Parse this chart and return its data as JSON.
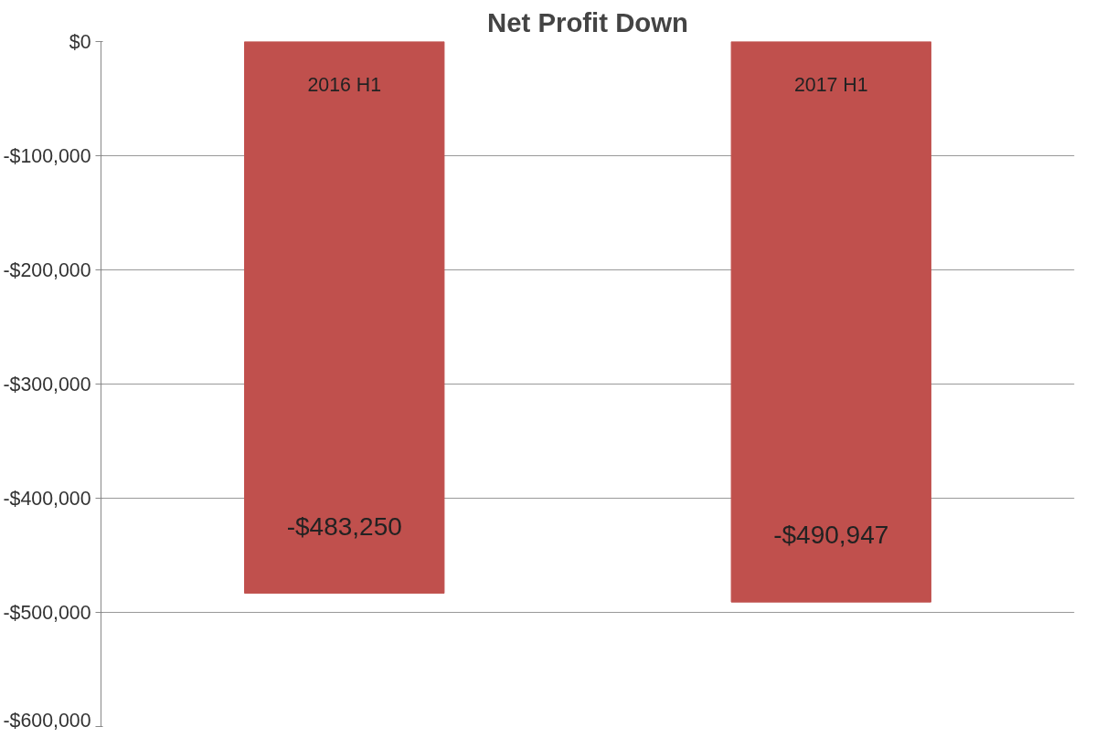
{
  "chart_data": {
    "type": "bar",
    "title": "Net Profit Down",
    "categories": [
      "2016 H1",
      "2017 H1"
    ],
    "series": [
      {
        "color": "#c0504d",
        "values": [
          -483250,
          -490947
        ]
      }
    ],
    "value_labels": [
      "-$483,250",
      "-$490,947"
    ],
    "ylim": [
      -600000,
      0
    ],
    "yticks": [
      {
        "value": 0,
        "label": "$0"
      },
      {
        "value": -100000,
        "label": "-$100,000"
      },
      {
        "value": -200000,
        "label": "-$200,000"
      },
      {
        "value": -300000,
        "label": "-$300,000"
      },
      {
        "value": -400000,
        "label": "-$400,000"
      },
      {
        "value": -500000,
        "label": "-$500,000"
      },
      {
        "value": -600000,
        "label": "-$600,000"
      }
    ],
    "grid": "y",
    "tick_labels": "y"
  }
}
